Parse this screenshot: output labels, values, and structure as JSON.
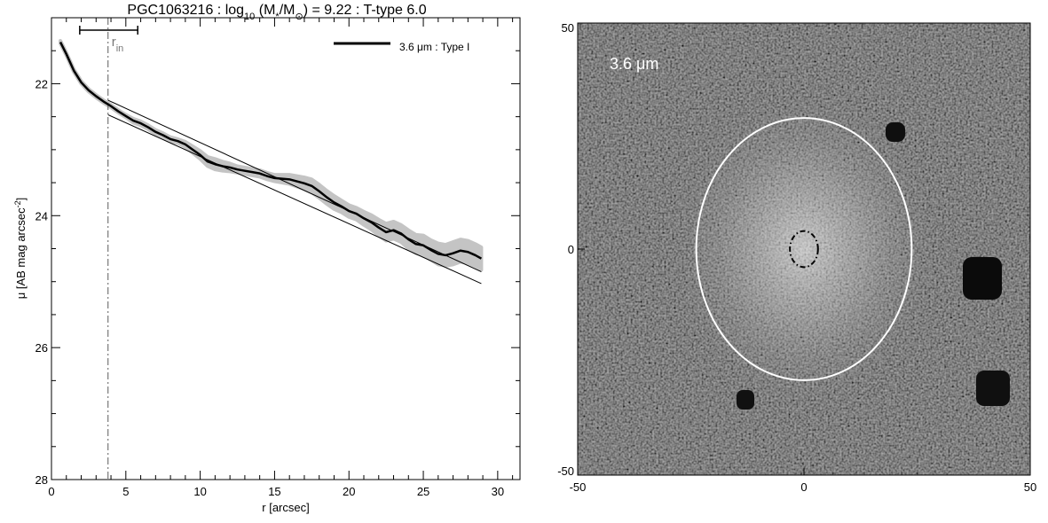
{
  "chart_data": [
    {
      "type": "line",
      "title_parts": {
        "prefix": "PGC1063216 : log",
        "log_sub": "10",
        "mass_open": " (M",
        "mass_sub": "*",
        "mass_slash": "/M",
        "sun_sub": "⊙",
        "suffix": ") = 9.22 : T-type 6.0"
      },
      "xlabel": "r [arcsec]",
      "ylabel_parts": {
        "main": "μ [AB mag arcsec",
        "sup": "-2",
        "close": "]"
      },
      "xlim": [
        0,
        31.5
      ],
      "ylim": [
        28,
        21
      ],
      "y_inverted": true,
      "x_ticks": [
        0,
        5,
        10,
        15,
        20,
        25,
        30
      ],
      "y_ticks": [
        22,
        24,
        26,
        28
      ],
      "x_minor_step": 1,
      "y_minor_step": 0.5,
      "legend": {
        "label": "3.6 μm : Type I",
        "position": "top-right"
      },
      "r_in": {
        "label": "r",
        "sub": "in",
        "value": 3.8,
        "bar_range": [
          1.9,
          5.8
        ],
        "color": "#777777"
      },
      "series": [
        {
          "name": "3.6 μm : Type I",
          "color": "#000000",
          "x": [
            0.6,
            1.0,
            1.5,
            2.0,
            2.5,
            3.0,
            3.5,
            4.0,
            4.5,
            5.0,
            5.5,
            6.0,
            6.5,
            7.0,
            7.5,
            8.0,
            8.5,
            9.0,
            9.5,
            10.0,
            10.5,
            11.0,
            11.5,
            12.0,
            12.5,
            13.0,
            13.5,
            14.0,
            14.5,
            15.0,
            15.5,
            16.0,
            16.5,
            17.0,
            17.5,
            18.0,
            18.5,
            19.0,
            19.5,
            20.0,
            20.5,
            21.0,
            21.5,
            22.0,
            22.5,
            23.0,
            23.5,
            24.0,
            24.5,
            25.0,
            25.5,
            26.0,
            26.5,
            27.0,
            27.5,
            28.0,
            28.5,
            28.9
          ],
          "values": [
            21.37,
            21.55,
            21.8,
            21.98,
            22.1,
            22.19,
            22.27,
            22.34,
            22.42,
            22.49,
            22.56,
            22.6,
            22.66,
            22.73,
            22.78,
            22.84,
            22.87,
            22.92,
            23.0,
            23.08,
            23.18,
            23.22,
            23.25,
            23.27,
            23.3,
            23.32,
            23.34,
            23.36,
            23.4,
            23.43,
            23.44,
            23.45,
            23.48,
            23.51,
            23.55,
            23.63,
            23.72,
            23.8,
            23.86,
            23.93,
            23.97,
            24.04,
            24.1,
            24.18,
            24.25,
            24.22,
            24.27,
            24.36,
            24.43,
            24.45,
            24.52,
            24.58,
            24.6,
            24.57,
            24.53,
            24.55,
            24.6,
            24.65
          ]
        }
      ],
      "uncertainty_halfwidth": [
        0.02,
        0.02,
        0.02,
        0.02,
        0.02,
        0.02,
        0.02,
        0.02,
        0.02,
        0.02,
        0.03,
        0.03,
        0.03,
        0.03,
        0.03,
        0.03,
        0.03,
        0.04,
        0.05,
        0.06,
        0.07,
        0.08,
        0.07,
        0.06,
        0.05,
        0.05,
        0.05,
        0.05,
        0.05,
        0.05,
        0.06,
        0.07,
        0.08,
        0.09,
        0.1,
        0.1,
        0.1,
        0.1,
        0.09,
        0.09,
        0.09,
        0.1,
        0.11,
        0.12,
        0.13,
        0.13,
        0.13,
        0.14,
        0.14,
        0.15,
        0.15,
        0.16,
        0.16,
        0.17,
        0.17,
        0.17,
        0.17,
        0.17
      ],
      "fit_lines": [
        {
          "x": [
            3.8,
            28.9
          ],
          "values": [
            22.25,
            24.85
          ],
          "color": "#000000"
        },
        {
          "x": [
            3.8,
            28.9
          ],
          "values": [
            22.47,
            25.03
          ],
          "color": "#000000"
        }
      ]
    },
    {
      "type": "image",
      "label": "3.6 μm",
      "xlim": [
        -50,
        50
      ],
      "ylim": [
        -50,
        50
      ],
      "x_ticks": [
        -50,
        0,
        50
      ],
      "y_ticks": [
        -50,
        0,
        50
      ],
      "colormap": "grayscale",
      "ellipse_outer": {
        "cx": 0,
        "cy": 0,
        "rx": 23.8,
        "ry": 29,
        "color": "#ffffff",
        "style": "solid"
      },
      "ellipse_inner": {
        "cx": 0,
        "cy": 0,
        "rx": 3.1,
        "ry": 4.0,
        "color": "#000000",
        "style": "dash-dot"
      }
    }
  ]
}
